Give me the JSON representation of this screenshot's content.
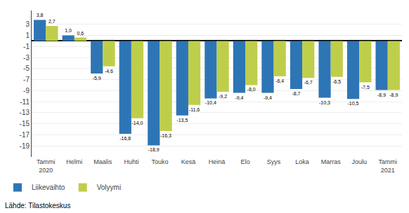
{
  "chart_data": {
    "type": "bar",
    "categories": [
      "Tammi\n2020",
      "Helmi",
      "Maalis",
      "Huhti",
      "Touko",
      "Kesä",
      "Heinä",
      "Elo",
      "Syys",
      "Loka",
      "Marras",
      "Joulu",
      "Tammi\n2021"
    ],
    "series": [
      {
        "name": "Liikevaihto",
        "color": "#2E75B6",
        "values": [
          3.8,
          1.0,
          -5.9,
          -16.8,
          -18.9,
          -13.5,
          -10.4,
          -9.4,
          -9.4,
          -8.7,
          -10.3,
          -10.5,
          -8.9
        ],
        "value_labels": [
          "3,8",
          "1,0",
          "-5,9",
          "-16,8",
          "-18,9",
          "-13,5",
          "-10,4",
          "-9,4",
          "-9,4",
          "-8,7",
          "-10,3",
          "-10,5",
          "-8,9"
        ]
      },
      {
        "name": "Volyymi",
        "color": "#BFCE4A",
        "values": [
          2.7,
          0.6,
          -4.6,
          -14.0,
          -16.3,
          -11.6,
          -9.2,
          -8.0,
          -6.4,
          -6.7,
          -6.5,
          -7.5,
          -8.9
        ],
        "value_labels": [
          "2,7",
          "0,6",
          "-4,6",
          "-14,0",
          "-16,3",
          "-11,6",
          "-9,2",
          "-8,0",
          "-6,4",
          "-6,7",
          "-6,5",
          "-7,5",
          "-8,9"
        ]
      }
    ],
    "ylim": [
      -21,
      5.5
    ],
    "yticks": [
      3,
      1,
      -1,
      -3,
      -5,
      -7,
      -9,
      -11,
      -13,
      -15,
      -17,
      -19
    ],
    "grid": true,
    "legend": "lower left",
    "data_labels": true,
    "annotations": [
      "Lähde: Tilastokeskus"
    ]
  }
}
